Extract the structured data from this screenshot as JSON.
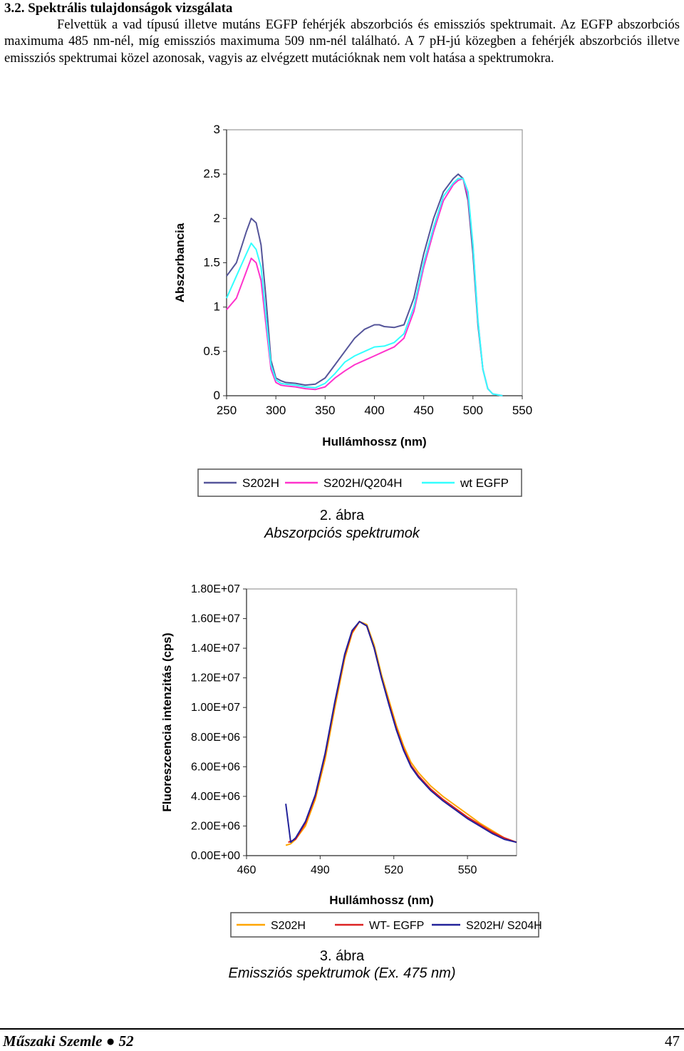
{
  "section": {
    "heading": "3.2. Spektrális tulajdonságok vizsgálata",
    "paragraph": "Felvettük a vad típusú illetve mutáns EGFP fehérjék abszorbciós és emissziós spektrumait. Az EGFP abszorbciós maximuma 485 nm-nél, míg emissziós maximuma 509 nm-nél található. A 7 pH-jú közegben a fehérjék abszorbciós illetve emissziós spektrumai közel azonosak, vagyis az elvégzett mutációknak nem volt hatása a spektrumokra."
  },
  "figure2": {
    "number": "2. ábra",
    "caption": "Abszorpciós spektrumok",
    "chart_data": {
      "type": "line",
      "xlabel": "Hullámhossz (nm)",
      "ylabel": "Abszorbancia",
      "xlim": [
        250,
        550
      ],
      "ylim": [
        0,
        3
      ],
      "x_ticks": [
        "250",
        "300",
        "350",
        "400",
        "450",
        "500",
        "550"
      ],
      "y_ticks": [
        "0",
        "0.5",
        "1",
        "1.5",
        "2",
        "2.5",
        "3"
      ],
      "grid": false,
      "legend": "bottom",
      "series": [
        {
          "name": "S202H",
          "color": "#55559a",
          "x": [
            250,
            260,
            270,
            275,
            280,
            285,
            290,
            295,
            300,
            305,
            310,
            320,
            330,
            340,
            350,
            360,
            370,
            380,
            390,
            400,
            405,
            410,
            420,
            430,
            440,
            450,
            460,
            470,
            480,
            485,
            490,
            495,
            500,
            505,
            510,
            515,
            520,
            530
          ],
          "y": [
            1.35,
            1.5,
            1.85,
            2.0,
            1.95,
            1.7,
            1.1,
            0.4,
            0.2,
            0.17,
            0.15,
            0.14,
            0.12,
            0.13,
            0.2,
            0.35,
            0.5,
            0.65,
            0.75,
            0.8,
            0.8,
            0.78,
            0.77,
            0.8,
            1.1,
            1.6,
            2.0,
            2.3,
            2.45,
            2.5,
            2.45,
            2.2,
            1.6,
            0.8,
            0.3,
            0.08,
            0.02,
            0.0
          ]
        },
        {
          "name": "S202H/Q204H",
          "color": "#ff33cc",
          "x": [
            250,
            260,
            270,
            275,
            280,
            285,
            290,
            295,
            300,
            305,
            310,
            320,
            330,
            340,
            350,
            360,
            370,
            380,
            390,
            400,
            410,
            420,
            430,
            440,
            450,
            460,
            470,
            480,
            485,
            490,
            495,
            500,
            505,
            510,
            515,
            520,
            530
          ],
          "y": [
            0.97,
            1.1,
            1.4,
            1.55,
            1.5,
            1.3,
            0.8,
            0.3,
            0.15,
            0.12,
            0.11,
            0.1,
            0.08,
            0.07,
            0.1,
            0.2,
            0.28,
            0.35,
            0.4,
            0.45,
            0.5,
            0.55,
            0.65,
            0.95,
            1.45,
            1.85,
            2.2,
            2.38,
            2.43,
            2.45,
            2.25,
            1.7,
            0.85,
            0.3,
            0.08,
            0.02,
            0.0
          ]
        },
        {
          "name": "wt EGFP",
          "color": "#33ffff",
          "x": [
            250,
            260,
            270,
            275,
            280,
            285,
            290,
            295,
            300,
            305,
            310,
            320,
            330,
            340,
            350,
            360,
            370,
            380,
            390,
            400,
            410,
            420,
            430,
            440,
            450,
            460,
            470,
            480,
            485,
            490,
            495,
            500,
            505,
            510,
            515,
            520,
            530
          ],
          "y": [
            1.1,
            1.35,
            1.6,
            1.72,
            1.65,
            1.45,
            0.9,
            0.35,
            0.18,
            0.14,
            0.13,
            0.12,
            0.1,
            0.09,
            0.14,
            0.25,
            0.38,
            0.45,
            0.5,
            0.55,
            0.56,
            0.6,
            0.7,
            1.0,
            1.5,
            1.9,
            2.25,
            2.4,
            2.45,
            2.45,
            2.3,
            1.7,
            0.85,
            0.3,
            0.08,
            0.02,
            0.0
          ]
        }
      ]
    }
  },
  "figure3": {
    "number": "3. ábra",
    "caption": "Emissziós spektrumok (Ex. 475 nm)",
    "chart_data": {
      "type": "line",
      "xlabel": "Hullámhossz (nm)",
      "ylabel": "Fluoreszcencia intenzitás (cps)",
      "xlim": [
        460,
        570
      ],
      "ylim": [
        0,
        18000000
      ],
      "x_ticks": [
        "460",
        "490",
        "520",
        "550"
      ],
      "x_tick_values": [
        460,
        490,
        520,
        550
      ],
      "y_ticks": [
        "0.00E+00",
        "2.00E+06",
        "4.00E+06",
        "6.00E+06",
        "8.00E+06",
        "1.00E+07",
        "1.20E+07",
        "1.40E+07",
        "1.60E+07",
        "1.80E+07"
      ],
      "grid": false,
      "legend": "bottom",
      "series": [
        {
          "name": "S202H",
          "color": "#ffa500",
          "x": [
            476,
            478,
            480,
            484,
            488,
            492,
            496,
            500,
            503,
            506,
            509,
            512,
            515,
            518,
            521,
            524,
            527,
            530,
            535,
            540,
            545,
            550,
            555,
            560,
            565,
            570
          ],
          "y": [
            700000,
            800000,
            1100000,
            2000000,
            3800000,
            6500000,
            10000000,
            13300000,
            15000000,
            15800000,
            15600000,
            14200000,
            12200000,
            10500000,
            8800000,
            7400000,
            6300000,
            5600000,
            4700000,
            4000000,
            3400000,
            2800000,
            2200000,
            1700000,
            1200000,
            900000
          ]
        },
        {
          "name": "WT- EGFP",
          "color": "#dd2222",
          "x": [
            477,
            480,
            484,
            488,
            492,
            496,
            500,
            503,
            506,
            509,
            512,
            515,
            518,
            521,
            524,
            527,
            530,
            535,
            540,
            545,
            550,
            555,
            560,
            565,
            570
          ],
          "y": [
            900000,
            1100000,
            2200000,
            4000000,
            6800000,
            10300000,
            13500000,
            15100000,
            15800000,
            15500000,
            14000000,
            12000000,
            10300000,
            8600000,
            7200000,
            6100000,
            5400000,
            4500000,
            3800000,
            3200000,
            2600000,
            2100000,
            1600000,
            1200000,
            900000
          ]
        },
        {
          "name": "S202H/ S204H",
          "color": "#22229a",
          "x": [
            476,
            478,
            480,
            484,
            488,
            492,
            496,
            500,
            503,
            506,
            509,
            512,
            515,
            518,
            521,
            524,
            527,
            530,
            535,
            540,
            545,
            550,
            555,
            560,
            565,
            570
          ],
          "y": [
            3500000,
            900000,
            1200000,
            2300000,
            4100000,
            6900000,
            10400000,
            13600000,
            15200000,
            15800000,
            15500000,
            14000000,
            12000000,
            10200000,
            8500000,
            7100000,
            6000000,
            5300000,
            4400000,
            3700000,
            3100000,
            2500000,
            2000000,
            1500000,
            1100000,
            900000
          ]
        }
      ]
    }
  },
  "footer": {
    "journal": "Műszaki Szemle",
    "bullet": "●",
    "issue": "52",
    "page": "47"
  }
}
